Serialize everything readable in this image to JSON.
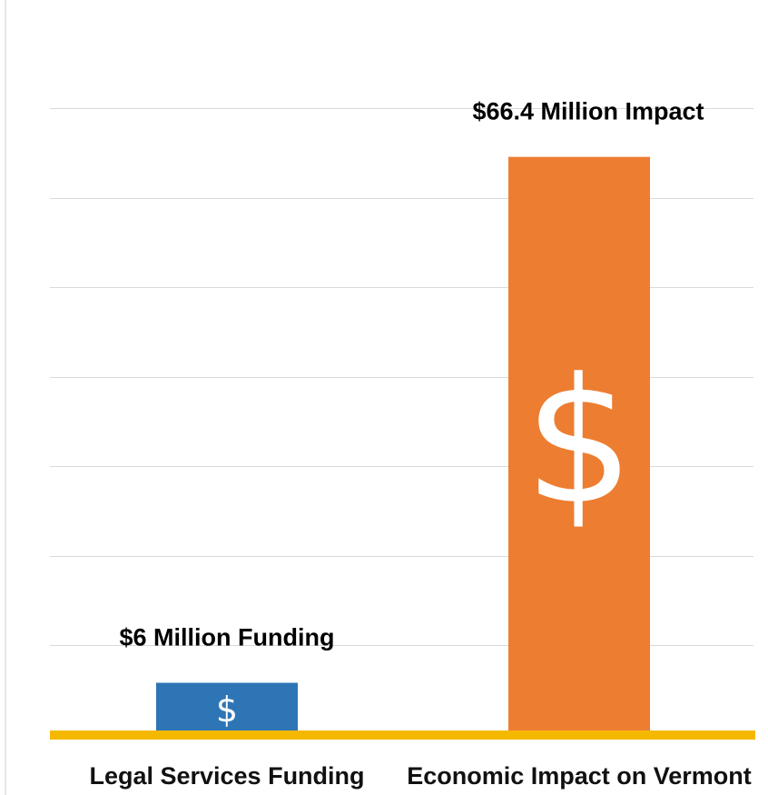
{
  "chart_data": {
    "type": "bar",
    "categories": [
      "Legal Services Funding",
      "Economic Impact on Vermont"
    ],
    "values": [
      6,
      66.4
    ],
    "unit": "million USD",
    "data_labels": [
      "$6 Million Funding",
      "$66.4 Million Impact"
    ],
    "bar_colors": [
      "#2e75b6",
      "#ed7d31"
    ],
    "bar_icon": "dollar-sign",
    "bar_icon_glyph": "$",
    "axis_line_color": "#f5b800",
    "grid": true,
    "ylim": [
      0,
      72
    ],
    "title": "",
    "xlabel": "",
    "ylabel": ""
  }
}
